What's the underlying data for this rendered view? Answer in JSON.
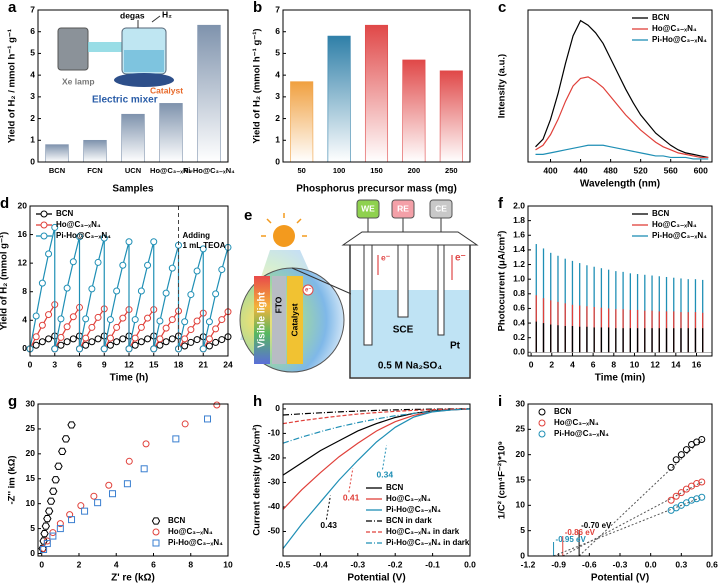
{
  "chart_data": [
    {
      "type": "bar",
      "panel": "a",
      "xlabel": "Samples",
      "ylabel": "Yield of H₂ / mmol h⁻¹ g⁻¹",
      "categories": [
        "BCN",
        "FCN",
        "UCN",
        "Ho@C₃₋ₓN₄",
        "Pi-Ho@C₃₋ₓN₄"
      ],
      "values": [
        0.8,
        1.0,
        2.2,
        2.7,
        6.3
      ],
      "color": "#7f93ad",
      "ylim": [
        0,
        7
      ],
      "yticks": [
        0,
        1,
        2,
        3,
        4,
        5,
        6,
        7
      ],
      "inset": {
        "degas": "degas",
        "gas": "H₂",
        "lamp": "Xe lamp",
        "mixer": "Electric mixer",
        "catalyst": "Catalyst"
      }
    },
    {
      "type": "bar",
      "panel": "b",
      "xlabel": "Phosphorus precursor mass (mg)",
      "ylabel": "Yield of H₂ (mmol h⁻¹ g⁻¹)",
      "categories": [
        "50",
        "100",
        "150",
        "200",
        "250"
      ],
      "values": [
        3.7,
        5.8,
        6.3,
        4.7,
        4.2
      ],
      "colors": [
        "#f0a040",
        "#2f7fa8",
        "#e04848",
        "#e04848",
        "#e04848"
      ],
      "ylim": [
        0,
        7
      ],
      "yticks": [
        0,
        1,
        2,
        3,
        4,
        5,
        6,
        7
      ]
    },
    {
      "type": "line",
      "panel": "c",
      "xlabel": "Wavelength (nm)",
      "ylabel": "Intensity (a.u.)",
      "legend": "upper right",
      "x": [
        380,
        390,
        400,
        410,
        420,
        430,
        440,
        450,
        460,
        470,
        480,
        490,
        500,
        510,
        520,
        530,
        540,
        550,
        560,
        570,
        580,
        590,
        600,
        610
      ],
      "xlim": [
        370,
        615
      ],
      "xticks": [
        400,
        440,
        480,
        520,
        560,
        600
      ],
      "ylim": [
        0,
        1
      ],
      "yticks": [],
      "series": [
        {
          "name": "BCN",
          "color": "#000000",
          "values": [
            0.1,
            0.15,
            0.28,
            0.45,
            0.65,
            0.83,
            0.93,
            0.9,
            0.85,
            0.78,
            0.68,
            0.58,
            0.48,
            0.39,
            0.31,
            0.25,
            0.19,
            0.15,
            0.11,
            0.08,
            0.06,
            0.05,
            0.04,
            0.03
          ]
        },
        {
          "name": "Ho@C₃₋ₓN₄",
          "color": "#e0403a",
          "values": [
            0.08,
            0.11,
            0.18,
            0.28,
            0.4,
            0.5,
            0.55,
            0.56,
            0.53,
            0.49,
            0.43,
            0.37,
            0.31,
            0.26,
            0.21,
            0.17,
            0.13,
            0.1,
            0.08,
            0.06,
            0.05,
            0.04,
            0.03,
            0.03
          ]
        },
        {
          "name": "Pi-Ho@C₃₋ₓN₄",
          "color": "#1f8fb5",
          "values": [
            0.05,
            0.05,
            0.06,
            0.07,
            0.08,
            0.09,
            0.1,
            0.11,
            0.11,
            0.11,
            0.1,
            0.09,
            0.08,
            0.07,
            0.06,
            0.05,
            0.04,
            0.04,
            0.03,
            0.03,
            0.03,
            0.02,
            0.02,
            0.02
          ]
        }
      ]
    },
    {
      "type": "line",
      "panel": "d",
      "xlabel": "Time (h)",
      "ylabel": "Yield of H₂ (mmol g⁻¹)",
      "legend": "upper left",
      "annotation": [
        "Adding",
        "1 mL TEOA"
      ],
      "vline": 18,
      "x": [
        0,
        0.75,
        1.5,
        2.25,
        3,
        3,
        3.75,
        4.5,
        5.25,
        6,
        6,
        6.75,
        7.5,
        8.25,
        9,
        9,
        9.75,
        10.5,
        11.25,
        12,
        12,
        12.75,
        13.5,
        14.25,
        15,
        15,
        15.75,
        16.5,
        17.25,
        18,
        18,
        18.75,
        19.5,
        20.25,
        21,
        21,
        21.75,
        22.5,
        23.25,
        24
      ],
      "xlim": [
        0,
        24
      ],
      "xticks": [
        0,
        3,
        6,
        9,
        12,
        15,
        18,
        21,
        24
      ],
      "ylim": [
        -1,
        20
      ],
      "yticks": [
        0,
        4,
        8,
        12,
        16,
        20
      ],
      "series": [
        {
          "name": "BCN",
          "color": "#000000",
          "marker": "circle",
          "values": [
            0,
            0.5,
            1.0,
            1.4,
            1.8,
            0,
            0.5,
            1.0,
            1.4,
            1.8,
            0,
            0.5,
            1.0,
            1.4,
            1.8,
            0,
            0.5,
            1.0,
            1.4,
            1.8,
            0,
            0.5,
            1.0,
            1.4,
            1.8,
            0,
            0.5,
            1.0,
            1.4,
            1.8,
            0,
            0.4,
            0.9,
            1.3,
            1.7,
            0,
            0.4,
            0.9,
            1.3,
            1.7
          ]
        },
        {
          "name": "Ho@C₃₋ₓN₄",
          "color": "#e0403a",
          "marker": "circle",
          "values": [
            0,
            1.7,
            3.3,
            4.8,
            6.2,
            0,
            1.6,
            3.1,
            4.5,
            5.8,
            0,
            1.5,
            3.0,
            4.4,
            5.6,
            0,
            1.5,
            3.0,
            4.3,
            5.5,
            0,
            1.5,
            3.0,
            4.3,
            5.5,
            0,
            1.4,
            2.9,
            4.1,
            5.3,
            0,
            1.4,
            2.7,
            3.9,
            5.0,
            0,
            1.4,
            2.8,
            4.1,
            5.2
          ]
        },
        {
          "name": "Pi-Ho@C₃₋ₓN₄",
          "color": "#1f8fb5",
          "marker": "circle",
          "values": [
            0,
            4.6,
            9.2,
            13.3,
            17,
            0,
            4.2,
            8.5,
            12.2,
            15.7,
            0,
            4.2,
            8.4,
            12.1,
            15.5,
            0,
            4.1,
            8.1,
            11.7,
            15,
            0,
            4.1,
            8.1,
            11.7,
            15,
            0,
            3.9,
            7.8,
            11.3,
            14.5,
            0,
            3.8,
            7.6,
            10.9,
            14,
            0,
            3.8,
            7.7,
            11.1,
            14.2
          ]
        }
      ]
    },
    {
      "type": "stem",
      "panel": "f",
      "xlabel": "Time (min)",
      "ylabel": "Photocurrent (μA/cm²)",
      "legend": "upper right",
      "x": [
        0.5,
        1.2,
        1.9,
        2.6,
        3.3,
        4.0,
        4.7,
        5.4,
        6.1,
        6.8,
        7.5,
        8.2,
        8.9,
        9.6,
        10.3,
        11.0,
        11.7,
        12.4,
        13.1,
        13.8,
        14.5,
        15.2,
        15.9,
        16.6
      ],
      "xlim": [
        -0.3,
        17.5
      ],
      "xticks": [
        0,
        2,
        4,
        6,
        8,
        10,
        12,
        14,
        16
      ],
      "ylim": [
        -0.05,
        2.0
      ],
      "yticks": [
        {
          "value": 0,
          "label": "0.0"
        },
        0.2,
        0.4,
        0.6,
        0.8,
        {
          "value": 1,
          "label": "1.0"
        },
        1.2,
        1.4,
        1.6,
        1.8,
        {
          "value": 2,
          "label": "2.0"
        }
      ],
      "series": [
        {
          "name": "BCN",
          "color": "#000000",
          "values": [
            0.42,
            0.4,
            0.38,
            0.37,
            0.36,
            0.36,
            0.35,
            0.35,
            0.34,
            0.34,
            0.34,
            0.33,
            0.33,
            0.33,
            0.33,
            0.33,
            0.33,
            0.33,
            0.33,
            0.33,
            0.33,
            0.33,
            0.33,
            0.33
          ]
        },
        {
          "name": "Ho@C₃₋ₓN₄",
          "color": "#e0403a",
          "values": [
            0.78,
            0.74,
            0.71,
            0.69,
            0.67,
            0.65,
            0.64,
            0.63,
            0.62,
            0.61,
            0.6,
            0.59,
            0.59,
            0.58,
            0.58,
            0.57,
            0.57,
            0.56,
            0.56,
            0.56,
            0.55,
            0.55,
            0.55,
            0.54
          ]
        },
        {
          "name": "Pi-Ho@C₃₋ₓN₄",
          "color": "#1f8fb5",
          "values": [
            1.48,
            1.42,
            1.36,
            1.32,
            1.28,
            1.25,
            1.22,
            1.19,
            1.17,
            1.15,
            1.13,
            1.11,
            1.1,
            1.08,
            1.07,
            1.06,
            1.05,
            1.04,
            1.03,
            1.02,
            1.01,
            1.0,
            1.0,
            0.99
          ]
        }
      ]
    },
    {
      "type": "scatter",
      "panel": "g",
      "xlabel": "Z' re (kΩ)",
      "ylabel": "-Z'' im (kΩ)",
      "legend": "lower right",
      "xlim": [
        -0.2,
        10
      ],
      "xticks": [
        0,
        2,
        4,
        6,
        8,
        10
      ],
      "ylim": [
        -0.5,
        30
      ],
      "yticks": [
        0,
        5,
        10,
        15,
        20,
        25,
        30
      ],
      "series": [
        {
          "name": "BCN",
          "color": "#000000",
          "marker": "hexagon",
          "x": [
            0.05,
            0.1,
            0.15,
            0.22,
            0.3,
            0.4,
            0.5,
            0.62,
            0.75,
            0.9,
            1.1,
            1.3,
            1.6
          ],
          "values": [
            1,
            2.5,
            4,
            5.5,
            7,
            8.5,
            10.5,
            12.5,
            14.8,
            17.5,
            20.5,
            23,
            25.8
          ]
        },
        {
          "name": "Ho@C₃₋ₓN₄",
          "color": "#e0403a",
          "marker": "circle",
          "x": [
            0.1,
            0.3,
            0.6,
            1.0,
            1.5,
            2.1,
            2.8,
            3.6,
            4.7,
            5.6,
            7.7,
            9.4
          ],
          "values": [
            1,
            2.5,
            4.2,
            6,
            7.8,
            9.6,
            11.5,
            13.7,
            18.5,
            22,
            26,
            29.8
          ]
        },
        {
          "name": "Pi-Ho@C₃₋ₓN₄",
          "color": "#3a7fd0",
          "marker": "square",
          "x": [
            0.1,
            0.3,
            0.6,
            1.0,
            1.6,
            2.3,
            3.0,
            3.8,
            4.6,
            5.5,
            7.2,
            8.9
          ],
          "values": [
            0.8,
            2,
            3.5,
            5,
            6.8,
            8.5,
            10.2,
            12,
            14,
            17,
            23,
            27
          ]
        }
      ]
    },
    {
      "type": "line",
      "panel": "h",
      "xlabel": "Potential (V)",
      "ylabel": "Current density (μA/cm²)",
      "legend": "lower right",
      "annotations": [
        {
          "text": "0.43",
          "color": "#000000"
        },
        {
          "text": "0.41",
          "color": "#e0403a"
        },
        {
          "text": "0.34",
          "color": "#1f8fb5"
        }
      ],
      "x": [
        -0.5,
        -0.45,
        -0.4,
        -0.35,
        -0.3,
        -0.25,
        -0.2,
        -0.15,
        -0.1,
        -0.05,
        0
      ],
      "xlim": [
        -0.5,
        0
      ],
      "xticks": [
        -0.5,
        -0.4,
        -0.3,
        -0.2,
        -0.1,
        {
          "value": 0,
          "label": "0.0"
        }
      ],
      "ylim": [
        -60,
        2
      ],
      "yticks": [
        -50,
        -40,
        -30,
        -20,
        -10,
        0
      ],
      "series": [
        {
          "name": "BCN",
          "color": "#000000",
          "dash": "solid",
          "values": [
            -27,
            -22,
            -17,
            -13,
            -9,
            -6,
            -3.5,
            -1.8,
            -0.8,
            -0.3,
            0
          ]
        },
        {
          "name": "Ho@C₃₋ₓN₄",
          "color": "#e0403a",
          "dash": "solid",
          "values": [
            -41,
            -33,
            -26,
            -19.5,
            -14,
            -9,
            -5.2,
            -2.6,
            -1.1,
            -0.4,
            0
          ]
        },
        {
          "name": "Pi-Ho@C₃₋ₓN₄",
          "color": "#1f8fb5",
          "dash": "solid",
          "values": [
            -57,
            -47,
            -38,
            -29,
            -21,
            -13.5,
            -7.5,
            -3.3,
            -1.2,
            -0.4,
            0
          ]
        },
        {
          "name": "BCN in dark",
          "color": "#000000",
          "dash": "dashdot",
          "values": [
            -2.5,
            -2,
            -1.6,
            -1.2,
            -0.9,
            -0.6,
            -0.4,
            -0.2,
            -0.1,
            0,
            0
          ]
        },
        {
          "name": "Ho@C₃₋ₓN₄ in dark",
          "color": "#e0403a",
          "dash": "dash",
          "values": [
            -6,
            -4.8,
            -3.8,
            -2.9,
            -2.1,
            -1.5,
            -1,
            -0.6,
            -0.3,
            -0.1,
            0
          ]
        },
        {
          "name": "Pi-Ho@C₃₋ₓN₄ in dark",
          "color": "#1f8fb5",
          "dash": "dashdot",
          "values": [
            -14,
            -11.5,
            -9.3,
            -7.3,
            -5.6,
            -4.1,
            -2.8,
            -1.8,
            -1,
            -0.4,
            0
          ]
        }
      ]
    },
    {
      "type": "scatter",
      "panel": "i",
      "xlabel": "Potential (V)",
      "ylabel": "1/C² (cm⁴F⁻²)*10⁹",
      "legend": "upper left",
      "xlim": [
        -1.2,
        0.6
      ],
      "xticks": [
        -1.2,
        -0.9,
        -0.6,
        -0.3,
        {
          "value": 0,
          "label": "0.0"
        },
        0.3,
        0.6
      ],
      "ylim": [
        0,
        30
      ],
      "yticks": [
        0,
        5,
        10,
        15,
        20,
        25,
        30
      ],
      "series": [
        {
          "name": "BCN",
          "color": "#000000",
          "marker": "circle",
          "intercept": -0.7,
          "intercept_label": "-0.70 eV",
          "x": [
            0.2,
            0.25,
            0.3,
            0.35,
            0.4,
            0.45,
            0.5
          ],
          "values": [
            17.5,
            19,
            20,
            21,
            22,
            22.5,
            23
          ]
        },
        {
          "name": "Ho@C₃₋ₓN₄",
          "color": "#e0403a",
          "marker": "circle",
          "intercept": -0.86,
          "intercept_label": "-0.86 eV",
          "x": [
            0.2,
            0.25,
            0.3,
            0.35,
            0.4,
            0.45,
            0.5
          ],
          "values": [
            11,
            11.8,
            12.5,
            13.2,
            13.8,
            14.3,
            14.6
          ]
        },
        {
          "name": "Pi-Ho@C₃₋ₓN₄",
          "color": "#1f8fb5",
          "marker": "circle",
          "intercept": -0.95,
          "intercept_label": "-0.95 eV",
          "x": [
            0.2,
            0.25,
            0.3,
            0.35,
            0.4,
            0.45,
            0.5
          ],
          "values": [
            9,
            9.5,
            10,
            10.5,
            11,
            11.3,
            11.6
          ]
        }
      ]
    }
  ],
  "diagram_e": {
    "panel": "e",
    "light": "Visible light",
    "layers": [
      "FTO",
      "Catalyst"
    ],
    "electrodes": [
      "WE",
      "RE",
      "CE"
    ],
    "reference": "SCE",
    "counter": "Pt",
    "electrolyte": "0.5 M Na₂SO₄",
    "electron": "e⁻"
  }
}
